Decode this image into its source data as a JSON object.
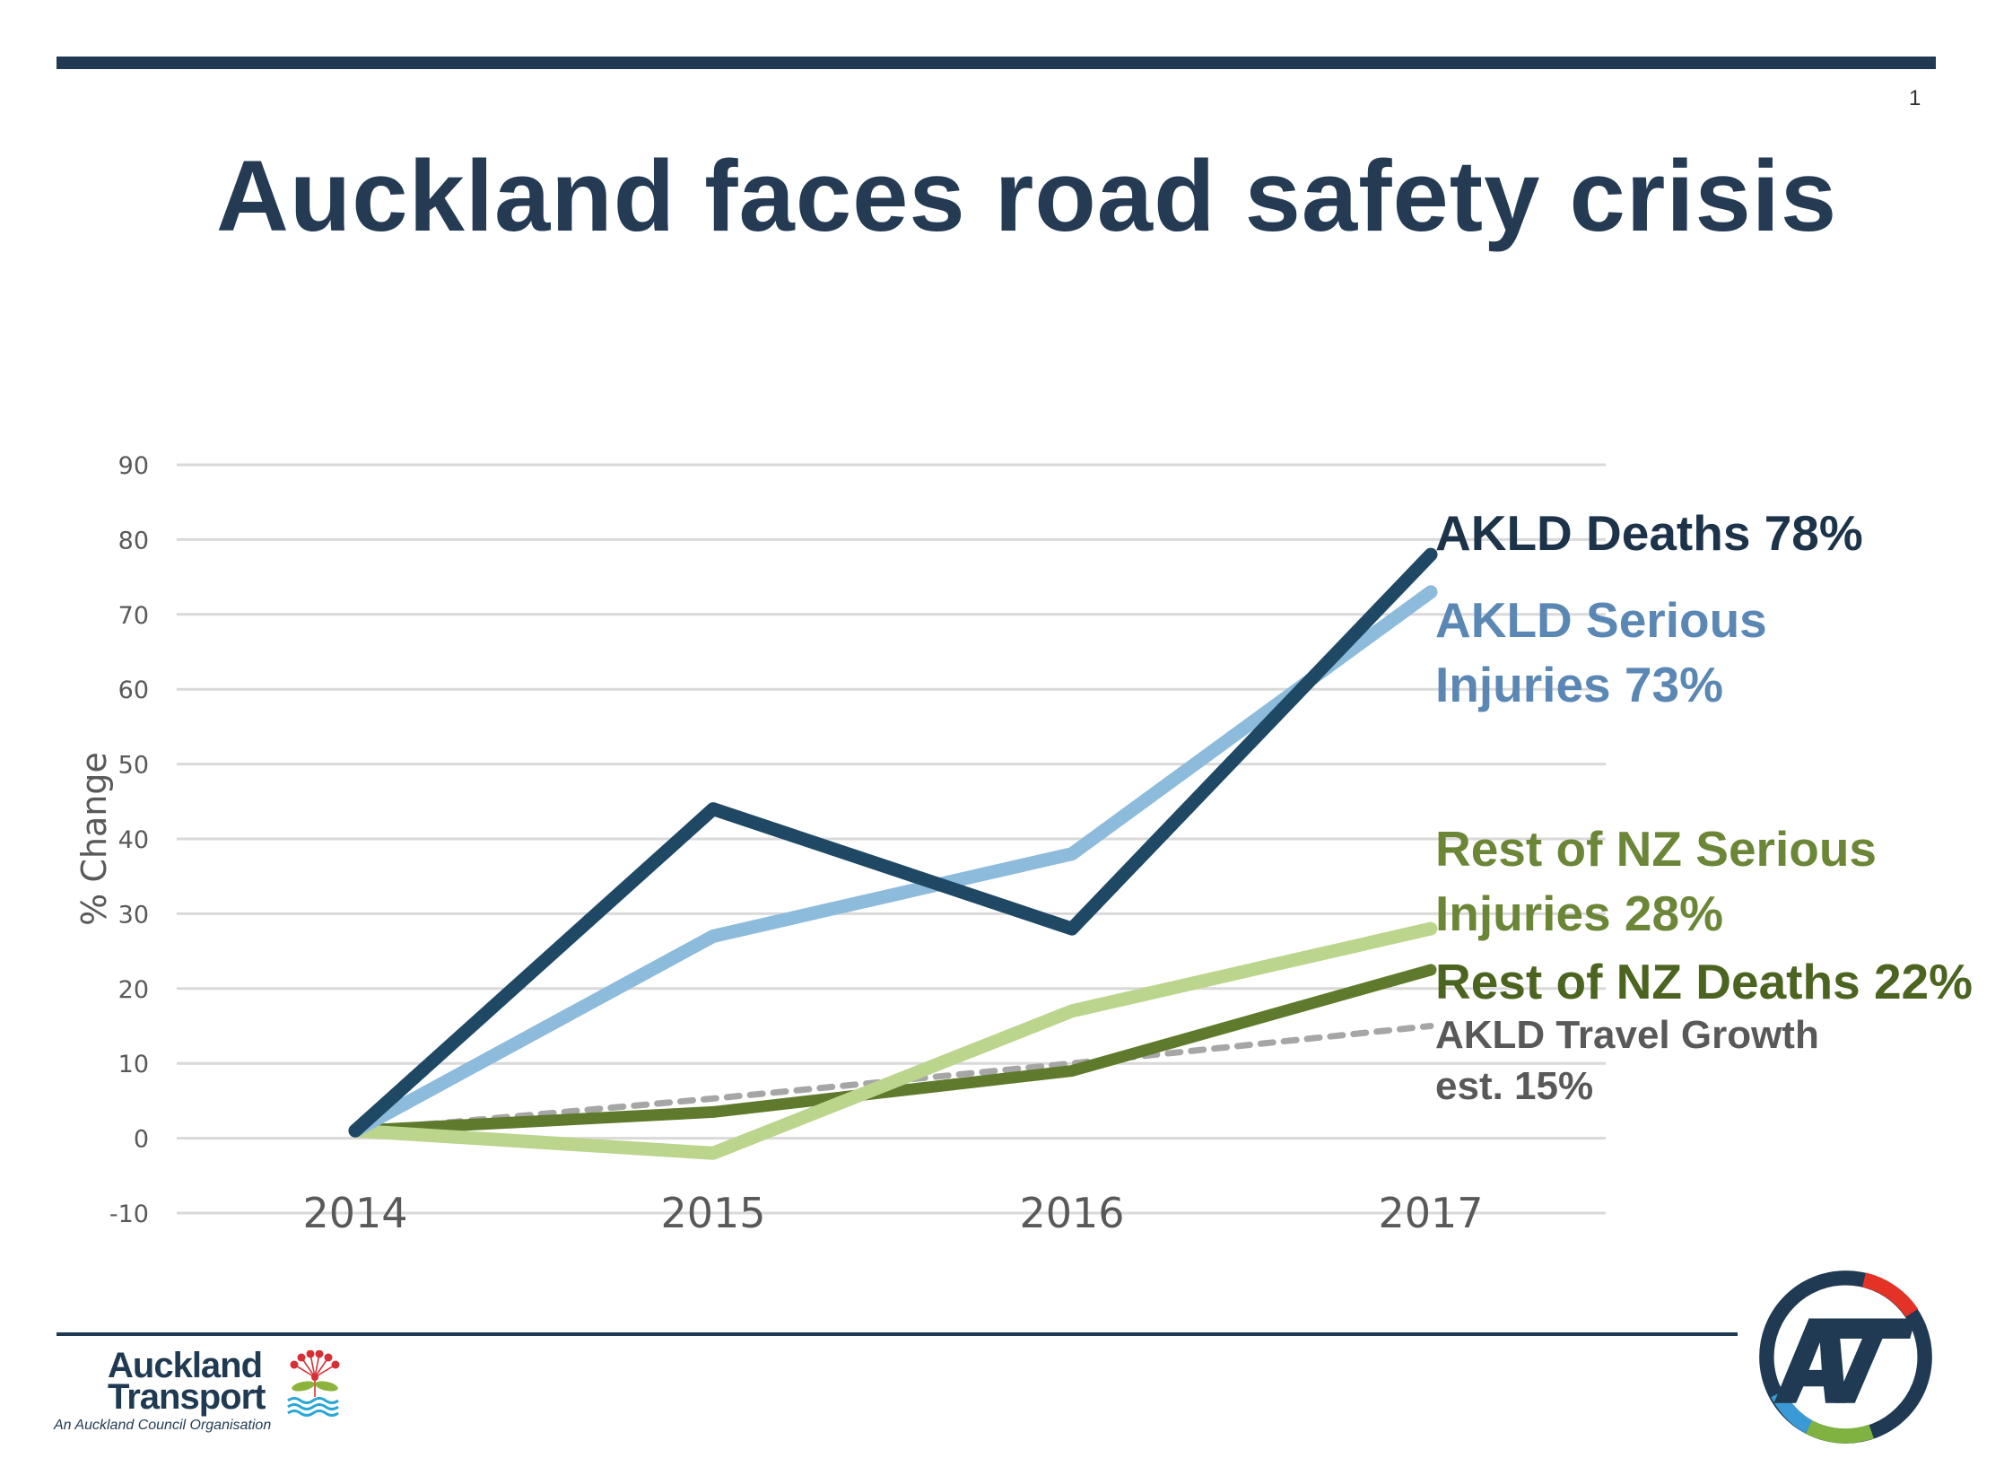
{
  "slide": {
    "page_number": "1",
    "title": "Auckland faces road safety crisis"
  },
  "footer": {
    "brand_line1": "Auckland",
    "brand_line2": "Transport",
    "brand_sub": "An Auckland Council Organisation",
    "logo_text": "AT"
  },
  "colors": {
    "brand_navy": "#1f3a52",
    "akld_deaths": "#1f4865",
    "akld_serious": "#8dbbdc",
    "rest_nz_serious": "#bcd58d",
    "rest_nz_deaths": "#5f7a2c",
    "travel_growth": "#a6a6a6",
    "gridline": "#d9d9d9"
  },
  "chart_data": {
    "type": "line",
    "title": "",
    "xlabel": "",
    "ylabel": "% Change",
    "categories": [
      "2014",
      "2015",
      "2016",
      "2017"
    ],
    "ylim": [
      -10,
      90
    ],
    "yticks": [
      90,
      80,
      70,
      60,
      50,
      40,
      30,
      20,
      10,
      0,
      -10
    ],
    "grid": true,
    "legend": "direct labels at right end of lines",
    "series": [
      {
        "name": "AKLD Deaths",
        "values": [
          1,
          44,
          28,
          78
        ],
        "color": "#1f4865",
        "dash": false,
        "label_lines": [
          "AKLD Deaths 78%"
        ],
        "label_color": "#1c3349"
      },
      {
        "name": "AKLD Serious Injuries",
        "values": [
          1,
          27,
          38,
          73
        ],
        "color": "#8dbbdc",
        "dash": false,
        "label_lines": [
          "AKLD Serious",
          "Injuries 73%"
        ],
        "label_color": "#5b87b5"
      },
      {
        "name": "Rest of NZ Serious Injuries",
        "values": [
          1,
          -2,
          17,
          28
        ],
        "color": "#bcd58d",
        "dash": false,
        "label_lines": [
          "Rest of NZ Serious",
          "Injuries 28%"
        ],
        "label_color": "#6a8636"
      },
      {
        "name": "Rest of NZ Deaths",
        "values": [
          1,
          3.5,
          9,
          22.5
        ],
        "color": "#5f7a2c",
        "dash": false,
        "label_lines": [
          "Rest of NZ Deaths 22%"
        ],
        "label_color": "#4b6420"
      },
      {
        "name": "AKLD Travel Growth est.",
        "values": [
          1,
          5.3,
          10,
          15
        ],
        "color": "#a6a6a6",
        "dash": true,
        "label_lines": [
          "AKLD Travel Growth",
          "est. 15%"
        ],
        "label_color": "#595959"
      }
    ]
  }
}
